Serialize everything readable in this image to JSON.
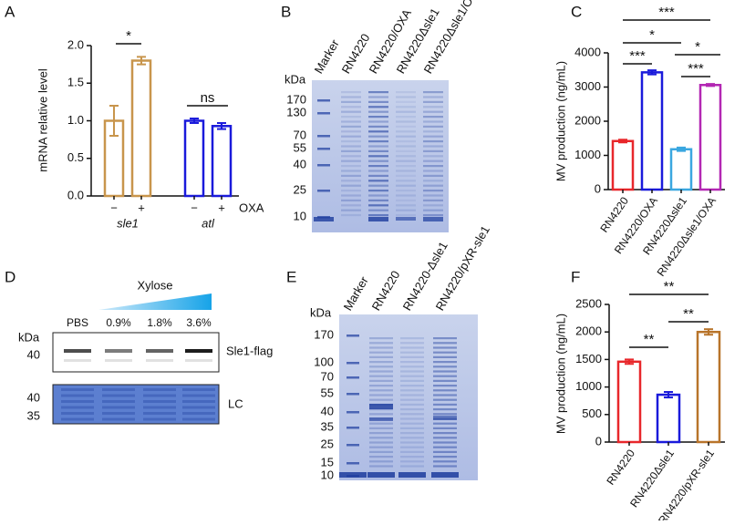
{
  "chart_data": [
    {
      "type": "bar",
      "panel": "A",
      "ylabel": "mRNA relative level",
      "categories": [
        "−",
        "+",
        "−",
        "+"
      ],
      "groups": [
        "sle1",
        "atl"
      ],
      "group_suffix": "OXA",
      "values": [
        1.0,
        1.8,
        1.0,
        0.93
      ],
      "errors": [
        0.2,
        0.05,
        0.03,
        0.04
      ],
      "colors": [
        "#c8954c",
        "#c8954c",
        "#1a1adb",
        "#1a1adb"
      ],
      "ylim": [
        0,
        2
      ],
      "yticks": [
        {
          "value": 0,
          "label": "0.0"
        },
        0.5,
        {
          "value": 1,
          "label": "1.0"
        },
        1.5,
        {
          "value": 2,
          "label": "2.0"
        }
      ],
      "significance": [
        "*",
        "ns"
      ]
    },
    {
      "type": "bar",
      "panel": "C",
      "ylabel": "MV production (ng/mL)",
      "categories": [
        "RN4220",
        "RN4220/OXA",
        "RN4220Δsle1",
        "RN4220Δsle1/OXA"
      ],
      "values": [
        1420,
        3430,
        1180,
        3060
      ],
      "errors": [
        40,
        60,
        50,
        30
      ],
      "colors": [
        "#e8272b",
        "#1a1adb",
        "#3ba7e0",
        "#b327b3"
      ],
      "ylim": [
        0,
        4000
      ],
      "yticks": [
        0,
        1000,
        2000,
        3000,
        4000
      ],
      "significance": [
        "***",
        "*",
        "*",
        "***",
        "***"
      ]
    },
    {
      "type": "bar",
      "panel": "F",
      "ylabel": "MV production (ng/mL)",
      "categories": [
        "RN4220",
        "RN4220Δsle1",
        "RN4220/pXR-sle1"
      ],
      "values": [
        1460,
        860,
        2000
      ],
      "errors": [
        40,
        50,
        50
      ],
      "colors": [
        "#e8272b",
        "#1a1adb",
        "#b8742a"
      ],
      "ylim": [
        0,
        2500
      ],
      "yticks": [
        0,
        500,
        1000,
        1500,
        2000,
        2500
      ],
      "significance": [
        "**",
        "**",
        "**"
      ]
    }
  ],
  "gels": {
    "B": {
      "panel": "B",
      "unit": "kDa",
      "lanes": [
        "Marker",
        "RN4220",
        "RN4220/OXA",
        "RN4220Δsle1",
        "RN4220Δsle1/OXA"
      ],
      "markers": [
        170,
        130,
        70,
        55,
        40,
        25,
        10
      ]
    },
    "D": {
      "panel": "D",
      "treatment": "Xylose",
      "unit": "kDa",
      "lanes": [
        "PBS",
        "0.9%",
        "1.8%",
        "3.6%"
      ],
      "blot_markers": [
        40
      ],
      "blot_label": "Sle1-flag",
      "lc_markers": [
        40,
        35
      ],
      "lc_label": "LC"
    },
    "E": {
      "panel": "E",
      "unit": "kDa",
      "lanes": [
        "Marker",
        "RN4220",
        "RN4220-Δsle1",
        "RN4220/pXR-sle1"
      ],
      "markers": [
        170,
        100,
        70,
        55,
        40,
        35,
        25,
        15,
        10
      ]
    }
  }
}
